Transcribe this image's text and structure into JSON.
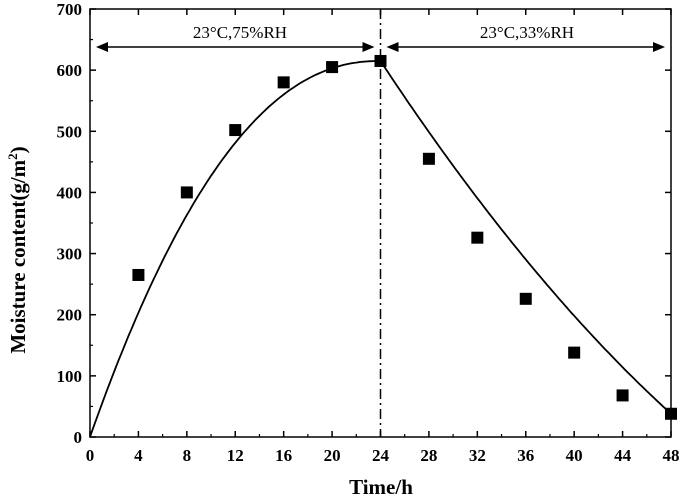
{
  "chart_data": {
    "type": "scatter",
    "xlabel": "Time/h",
    "ylabel": "Moisture content(g/m",
    "ylabel_sup": "2",
    "ylabel_close": ")",
    "xlim": [
      0,
      48
    ],
    "ylim": [
      0,
      700
    ],
    "xticks": [
      0,
      4,
      8,
      12,
      16,
      20,
      24,
      28,
      32,
      36,
      40,
      44,
      48
    ],
    "yticks": [
      0,
      100,
      200,
      300,
      400,
      500,
      600,
      700
    ],
    "grid": false,
    "legend": "none",
    "points": {
      "x": [
        4,
        8,
        12,
        16,
        20,
        24,
        28,
        32,
        36,
        40,
        44,
        48
      ],
      "y": [
        265,
        400,
        502,
        580,
        605,
        615,
        455,
        326,
        226,
        138,
        68,
        38
      ]
    },
    "fit_curve": {
      "absorption": {
        "x": [
          0,
          24
        ],
        "y_at_end": 615
      },
      "desorption": {
        "x": [
          24,
          48
        ],
        "y_at_end": 38
      }
    },
    "divider_x": 24,
    "regions": [
      {
        "label": "23°C,75%RH",
        "x_range": [
          0,
          24
        ]
      },
      {
        "label": "23°C,33%RH",
        "x_range": [
          24,
          48
        ]
      }
    ],
    "colors": {
      "line": "#000000",
      "marker": "#000000",
      "background": "#ffffff"
    }
  }
}
